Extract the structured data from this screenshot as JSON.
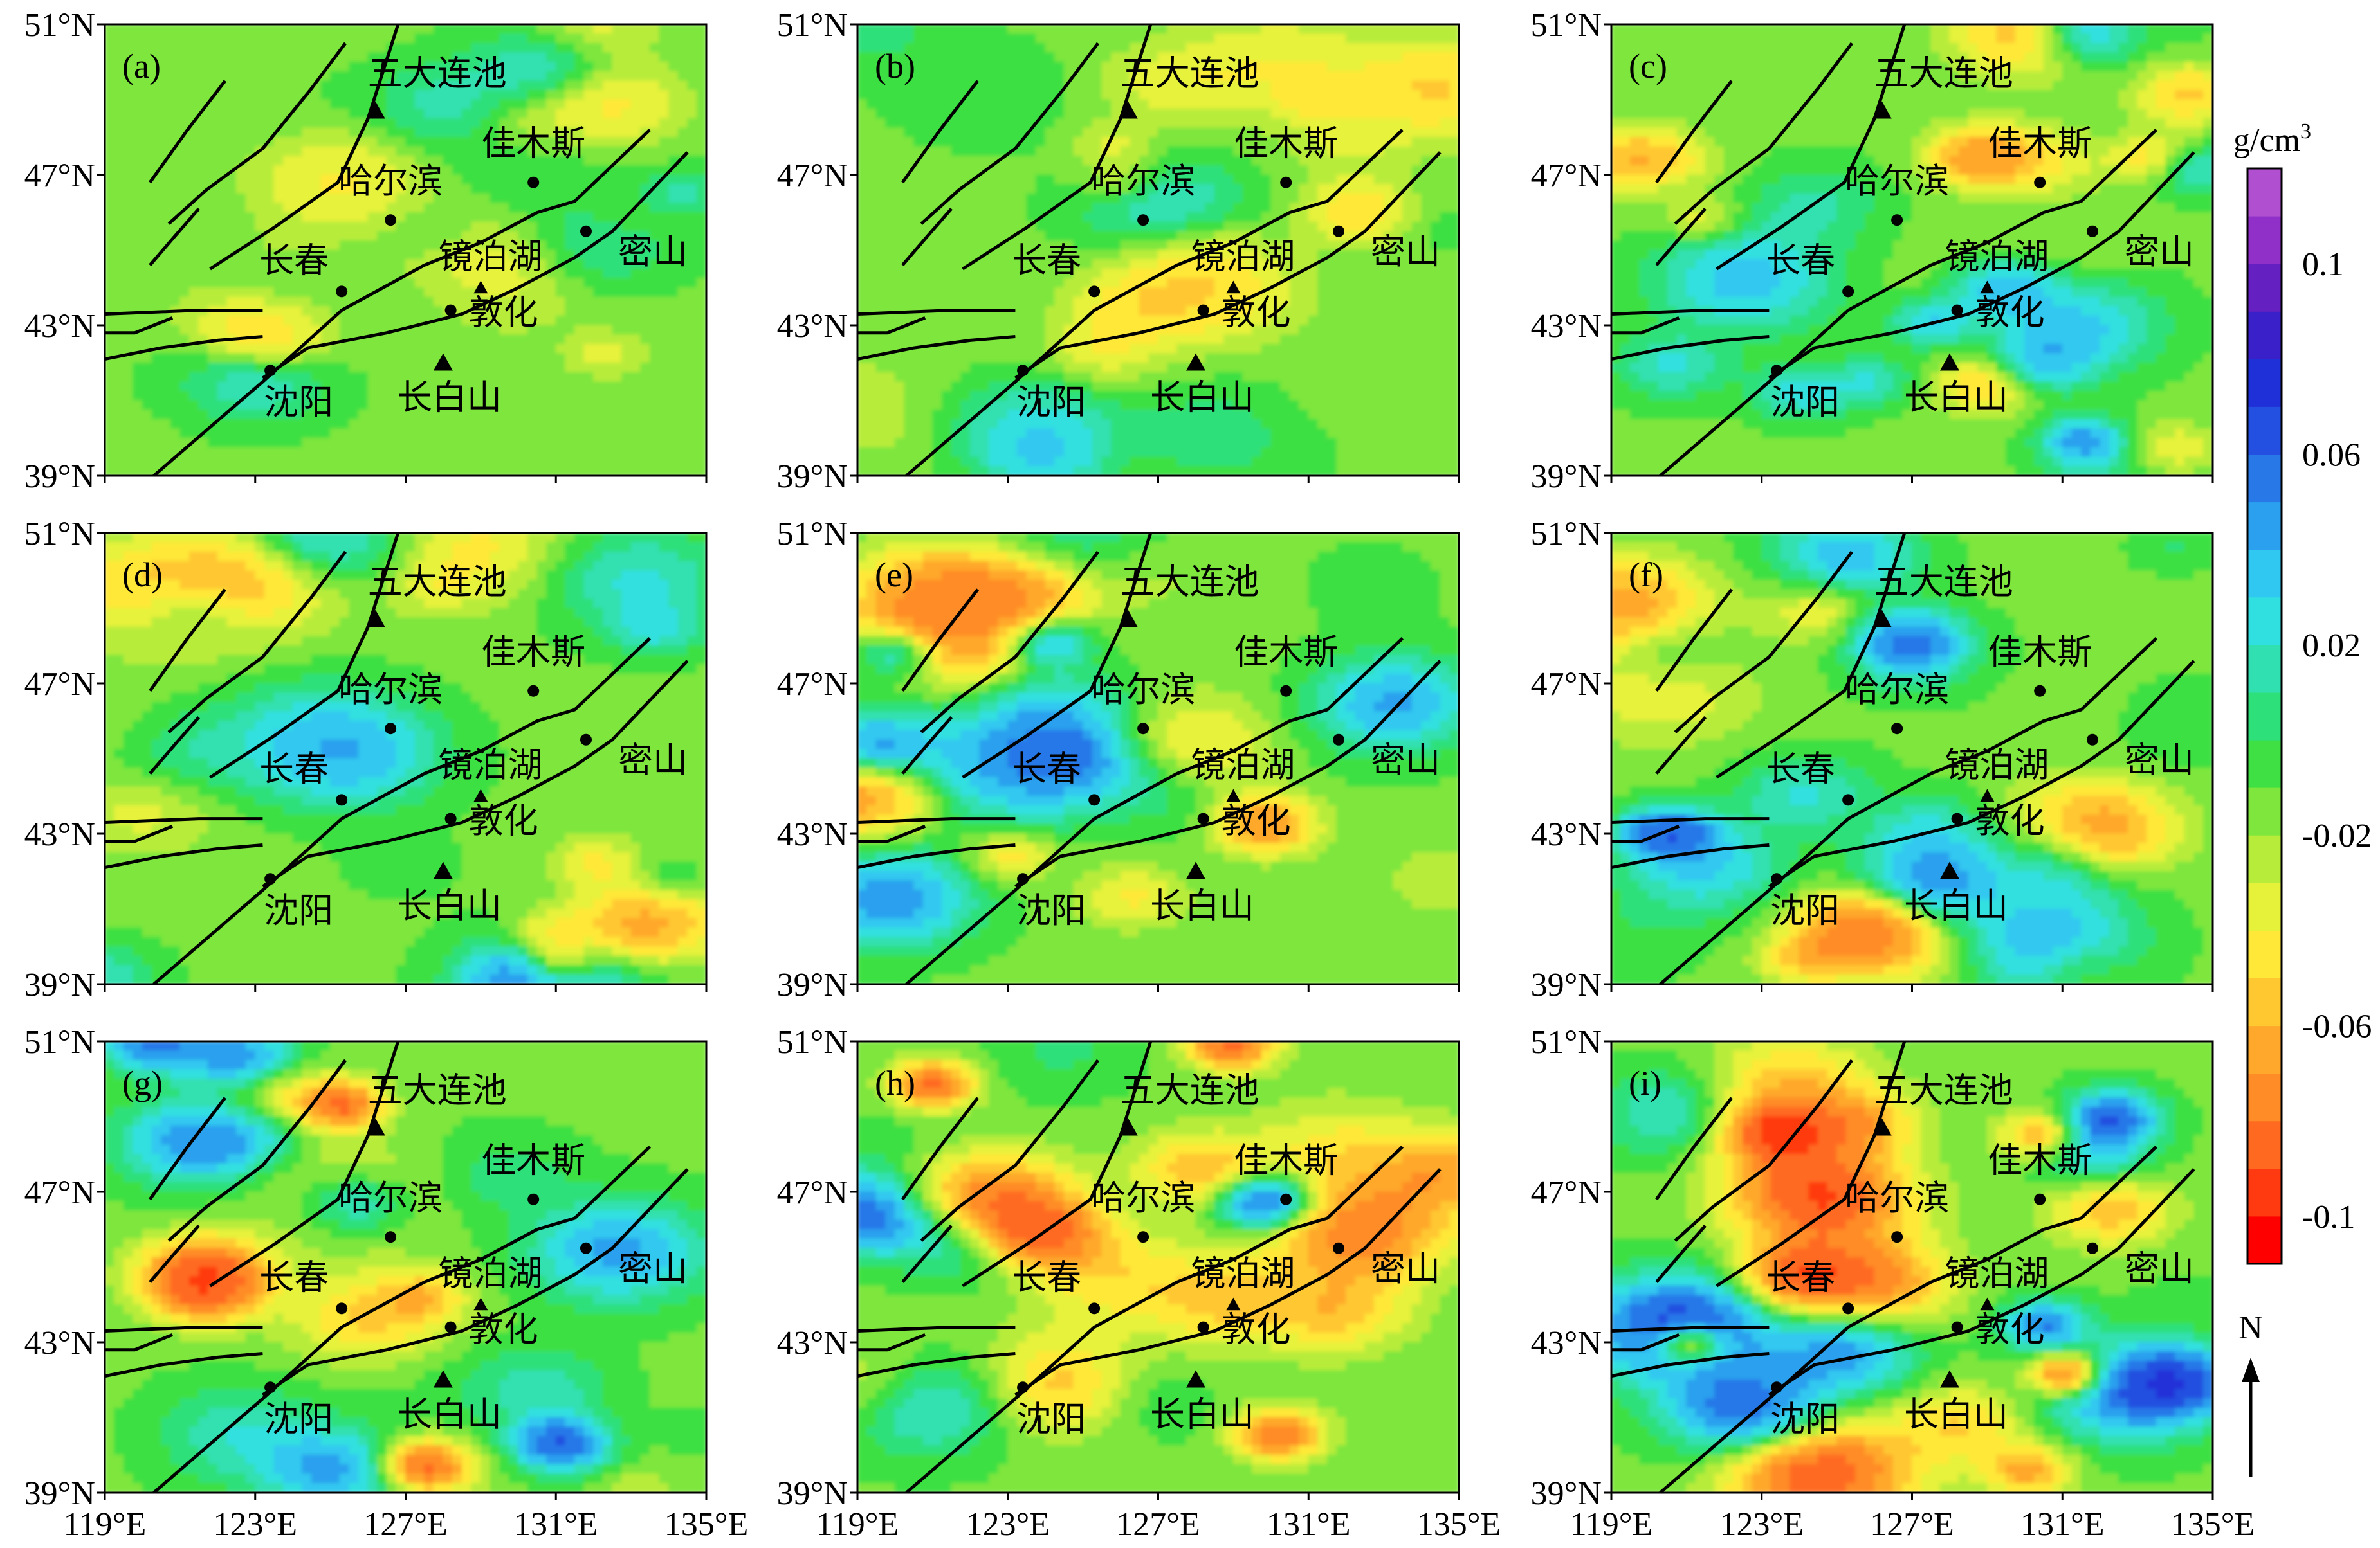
{
  "chart_data": {
    "type": "heatmap",
    "panels": [
      {
        "label": "(a)",
        "seed": 1,
        "amp": 0.4
      },
      {
        "label": "(b)",
        "seed": 2,
        "amp": 0.5
      },
      {
        "label": "(c)",
        "seed": 3,
        "amp": 0.7
      },
      {
        "label": "(d)",
        "seed": 4,
        "amp": 0.65
      },
      {
        "label": "(e)",
        "seed": 5,
        "amp": 0.8
      },
      {
        "label": "(f)",
        "seed": 6,
        "amp": 0.8
      },
      {
        "label": "(g)",
        "seed": 7,
        "amp": 0.9
      },
      {
        "label": "(h)",
        "seed": 8,
        "amp": 0.95
      },
      {
        "label": "(i)",
        "seed": 9,
        "amp": 1.0
      }
    ],
    "x_ticks": [
      "119°E",
      "123°E",
      "127°E",
      "131°E",
      "135°E"
    ],
    "x_values": [
      119,
      123,
      127,
      131,
      135
    ],
    "y_ticks": [
      "39°N",
      "43°N",
      "47°N",
      "51°N"
    ],
    "y_values": [
      39,
      43,
      47,
      51
    ],
    "xlim": [
      119,
      135
    ],
    "ylim": [
      39,
      51
    ],
    "colorbar": {
      "unit": "g/cm",
      "unit_sup": "3",
      "tick_labels": [
        "0.1",
        "0.06",
        "0.02",
        "-0.02",
        "-0.06",
        "-0.1"
      ],
      "tick_values": [
        0.1,
        0.06,
        0.02,
        -0.02,
        -0.06,
        -0.1
      ],
      "range": [
        -0.11,
        0.12
      ],
      "colors": [
        "#ff0000",
        "#ff3a10",
        "#ff6a20",
        "#ff8c26",
        "#ffa82c",
        "#ffc831",
        "#ffe838",
        "#e6f23a",
        "#b8ec3a",
        "#7ee63c",
        "#3ee043",
        "#2ee07a",
        "#30e0b0",
        "#30e0e0",
        "#30c8f0",
        "#2aa0ee",
        "#2878e8",
        "#2350e0",
        "#2030d8",
        "#3a20c8",
        "#6420c0",
        "#9030c8",
        "#b050d0"
      ]
    },
    "places": [
      {
        "name": "五大连池",
        "type": "volcano",
        "lon": 126.2,
        "lat": 48.7
      },
      {
        "name": "哈尔滨",
        "type": "city",
        "lon": 126.6,
        "lat": 45.8
      },
      {
        "name": "佳木斯",
        "type": "city",
        "lon": 130.4,
        "lat": 46.8
      },
      {
        "name": "长春",
        "type": "city",
        "lon": 125.3,
        "lat": 43.9
      },
      {
        "name": "镜泊湖",
        "type": "volcano",
        "lon": 129.0,
        "lat": 44.0
      },
      {
        "name": "密山",
        "type": "city",
        "lon": 131.8,
        "lat": 45.5
      },
      {
        "name": "敦化",
        "type": "city",
        "lon": 128.2,
        "lat": 43.4
      },
      {
        "name": "沈阳",
        "type": "city",
        "lon": 123.4,
        "lat": 41.8
      },
      {
        "name": "长白山",
        "type": "volcano",
        "lon": 128.0,
        "lat": 42.0
      }
    ],
    "faults": [
      [
        [
          120.3,
          39.0
        ],
        [
          123.2,
          41.5
        ],
        [
          125.3,
          43.4
        ],
        [
          127.5,
          44.6
        ],
        [
          129.0,
          45.2
        ],
        [
          130.5,
          46.0
        ],
        [
          131.5,
          46.3
        ],
        [
          133.5,
          48.2
        ]
      ],
      [
        [
          123.2,
          41.6
        ],
        [
          124.4,
          42.4
        ],
        [
          126.5,
          42.8
        ],
        [
          128.5,
          43.3
        ],
        [
          130.0,
          44.0
        ],
        [
          131.5,
          44.8
        ],
        [
          132.5,
          45.5
        ],
        [
          134.5,
          47.6
        ]
      ],
      [
        [
          119.0,
          43.3
        ],
        [
          121.5,
          43.4
        ],
        [
          123.2,
          43.4
        ]
      ],
      [
        [
          119.0,
          42.1
        ],
        [
          120.5,
          42.4
        ],
        [
          122.0,
          42.6
        ],
        [
          123.2,
          42.7
        ]
      ],
      [
        [
          119.0,
          42.8
        ],
        [
          119.8,
          42.8
        ],
        [
          120.8,
          43.2
        ]
      ],
      [
        [
          121.8,
          44.5
        ],
        [
          123.5,
          45.6
        ],
        [
          125.2,
          46.8
        ],
        [
          126.0,
          48.5
        ],
        [
          126.8,
          51.0
        ]
      ],
      [
        [
          120.7,
          45.7
        ],
        [
          121.7,
          46.6
        ],
        [
          123.2,
          47.7
        ],
        [
          124.5,
          49.3
        ],
        [
          125.4,
          50.5
        ]
      ],
      [
        [
          120.2,
          46.8
        ],
        [
          121.2,
          48.2
        ],
        [
          122.2,
          49.5
        ]
      ],
      [
        [
          120.2,
          44.6
        ],
        [
          120.8,
          45.3
        ],
        [
          121.5,
          46.1
        ]
      ]
    ]
  },
  "north_arrow": "N"
}
